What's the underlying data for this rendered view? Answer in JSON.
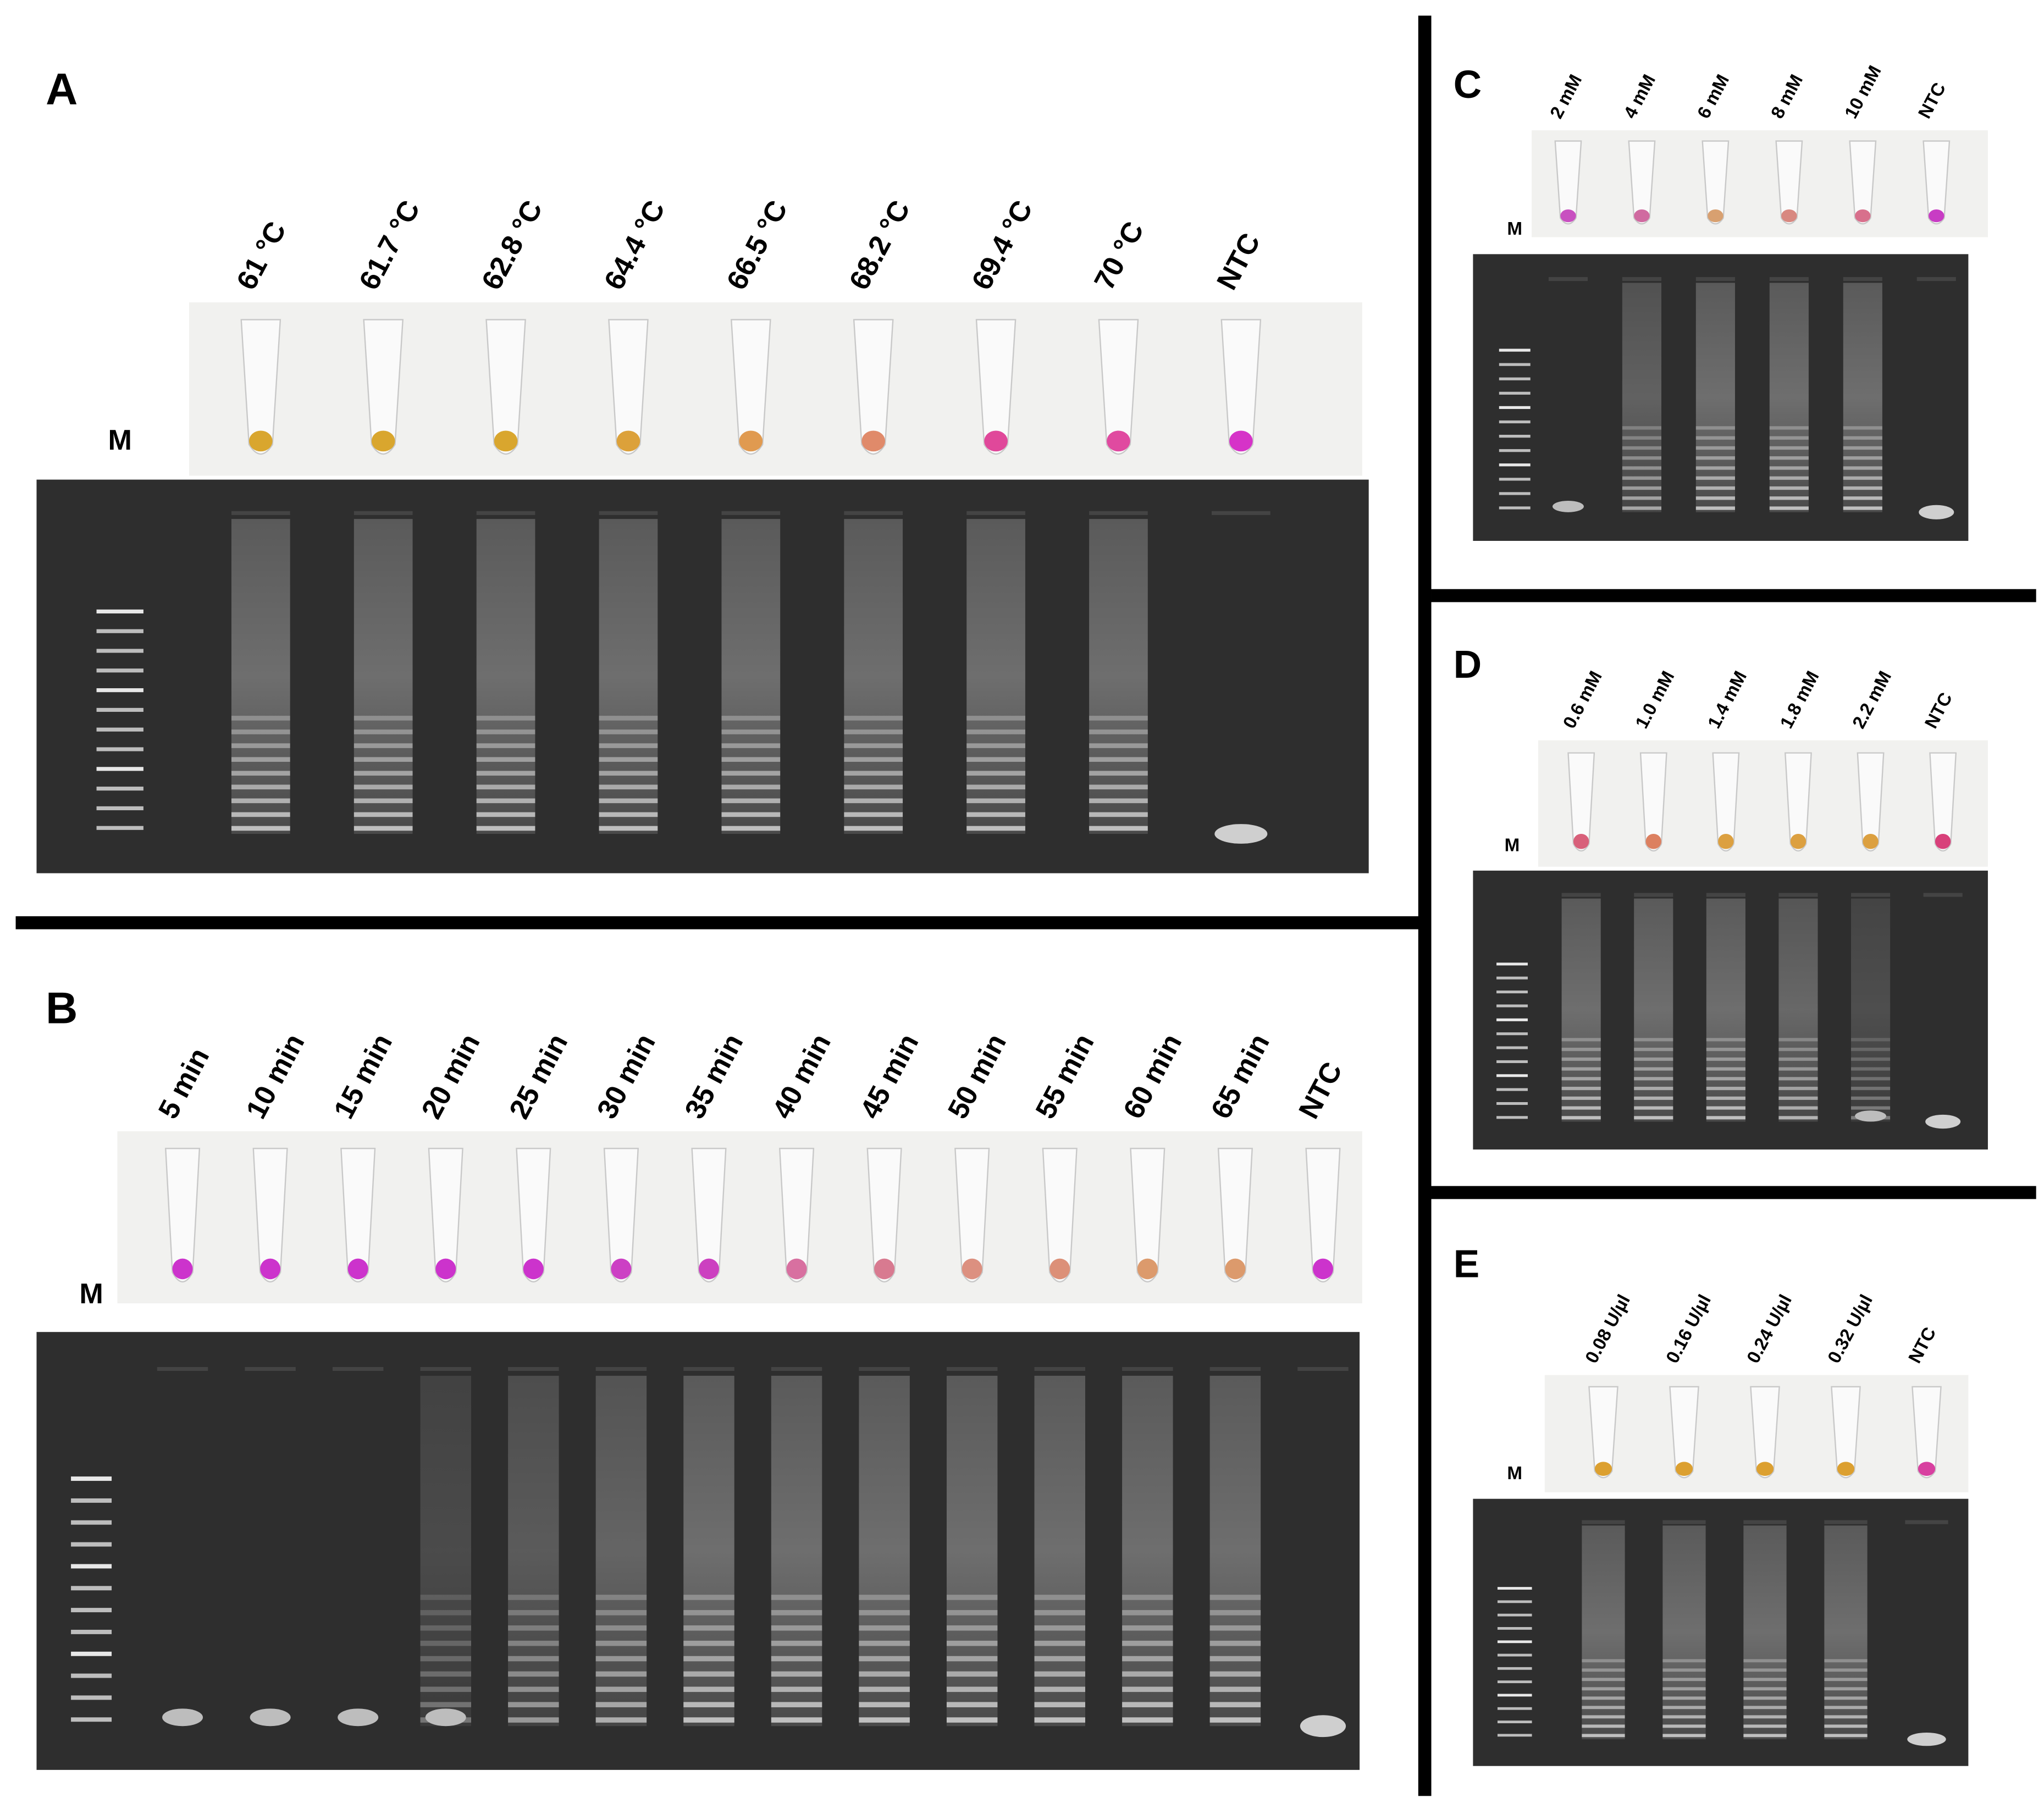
{
  "panels": [
    {
      "letter": "A",
      "marker": "M",
      "lanes": [
        "61 °C",
        "61.7 °C",
        "62.8 °C",
        "64.4 °C",
        "66.5 °C",
        "68.2 °C",
        "69.4 °C",
        "70 °C",
        "NTC"
      ],
      "tube_colors": [
        "#d9a62e",
        "#d9a62e",
        "#d9a62e",
        "#dca13a",
        "#e09a50",
        "#e08a6a",
        "#e0489a",
        "#e04aa0",
        "#d633c8"
      ]
    },
    {
      "letter": "B",
      "marker": "M",
      "lanes": [
        "5 min",
        "10 min",
        "15 min",
        "20 min",
        "25 min",
        "30 min",
        "35 min",
        "40 min",
        "45 min",
        "50 min",
        "55 min",
        "60 min",
        "65 min",
        "NTC"
      ],
      "tube_colors": [
        "#cc33cc",
        "#cc33cc",
        "#cc33cc",
        "#cc33cc",
        "#cc33cc",
        "#cc40c4",
        "#cc40c0",
        "#d870a0",
        "#d87a90",
        "#dc9080",
        "#dc9078",
        "#dc9a6c",
        "#dc9a6c",
        "#cc33cc"
      ]
    },
    {
      "letter": "C",
      "marker": "M",
      "lanes": [
        "2 mM",
        "4 mM",
        "6 mM",
        "8 mM",
        "10 mM",
        "NTC"
      ],
      "tube_colors": [
        "#c850c0",
        "#d06aa0",
        "#d8a070",
        "#d88880",
        "#d8708c",
        "#c83cc4"
      ]
    },
    {
      "letter": "D",
      "marker": "M",
      "lanes": [
        "0.6 mM",
        "1.0 mM",
        "1.4 mM",
        "1.8 mM",
        "2.2 mM",
        "NTC"
      ],
      "tube_colors": [
        "#d8607a",
        "#dc8060",
        "#dca040",
        "#dca040",
        "#dca040",
        "#d8407a"
      ]
    },
    {
      "letter": "E",
      "marker": "M",
      "lanes": [
        "0.08 U/µl",
        "0.16 U/µl",
        "0.24 U/µl",
        "0.32 U/µl",
        "NTC"
      ],
      "tube_colors": [
        "#dca030",
        "#dca030",
        "#dca030",
        "#dca030",
        "#d840a0"
      ]
    }
  ]
}
